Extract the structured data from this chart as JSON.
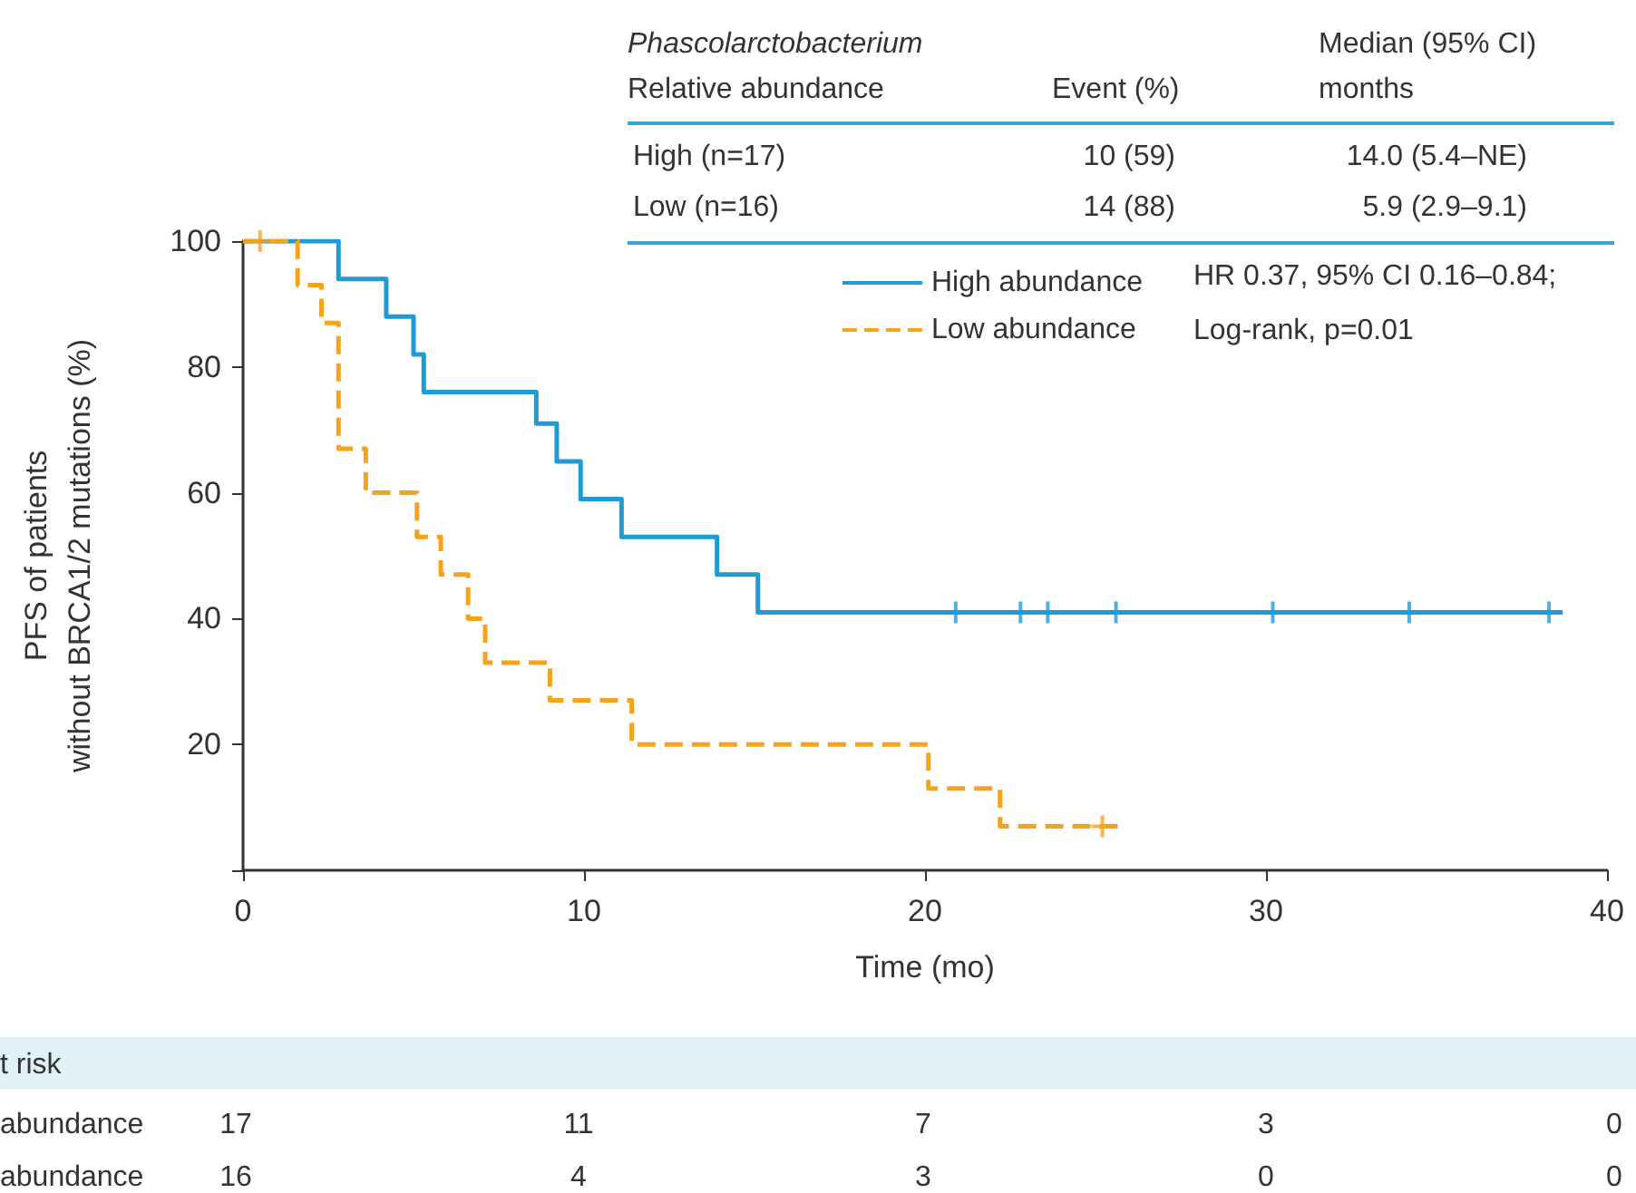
{
  "chart_data": {
    "type": "step",
    "xlabel": "Time (mo)",
    "ylabel": "PFS of patients\nwithout BRCA1/2 mutations (%)",
    "xlim": [
      0,
      40
    ],
    "xticks": [
      0,
      10,
      20,
      30,
      40
    ],
    "ylim": [
      0,
      100
    ],
    "yticks": [
      {
        "value": 0,
        "label": null
      },
      20,
      40,
      60,
      80,
      100
    ],
    "grid": false,
    "legend": "top right",
    "series": [
      {
        "name": "High abundance",
        "color": "#1e9bd7",
        "line_style": "solid",
        "marker": "none",
        "x": [
          0,
          2.8,
          4.2,
          5.0,
          5.3,
          8.6,
          9.2,
          9.9,
          11.1,
          13.9,
          15.1,
          38.7
        ],
        "values": [
          100,
          94,
          88,
          82,
          76,
          71,
          65,
          59,
          53,
          47,
          41,
          41
        ]
      },
      {
        "name": "Low abundance",
        "color": "#f7a21b",
        "line_style": "dashed",
        "marker": "none",
        "x": [
          0,
          1.6,
          2.3,
          2.8,
          3.6,
          5.1,
          5.8,
          6.6,
          7.1,
          9.0,
          11.4,
          20.1,
          22.2,
          25.7
        ],
        "values": [
          100,
          93,
          87,
          67,
          60,
          53,
          47,
          40,
          33,
          27,
          20,
          13,
          7,
          7
        ]
      },
      {
        "type": "scatter",
        "color": "#1e9bd7",
        "marker": "cross",
        "x": [
          20.9,
          22.8,
          23.6,
          25.6,
          30.2,
          34.2,
          38.3
        ],
        "values": [
          41,
          41,
          41,
          41,
          41,
          41,
          41
        ]
      },
      {
        "type": "scatter",
        "color": "#f7a21b",
        "marker": "cross",
        "x": [
          0.5,
          25.2
        ],
        "values": [
          100,
          7
        ]
      }
    ],
    "annotations": [
      "Phascolarctobacterium",
      "Relative abundance",
      "Event (%)",
      "Median (95% CI)",
      "months",
      "High (n=17)",
      "10 (59)",
      "14.0 (5.4–NE)",
      "Low (n=16)",
      "14 (88)",
      "5.9 (2.9–9.1)",
      "HR 0.37, 95% CI 0.16–0.84;",
      "Log-rank, p=0.01",
      "t risk",
      "abundance",
      "17",
      "11",
      "7",
      "3",
      "0",
      "abundance",
      "16",
      "4",
      "3",
      "0",
      "0"
    ]
  }
}
